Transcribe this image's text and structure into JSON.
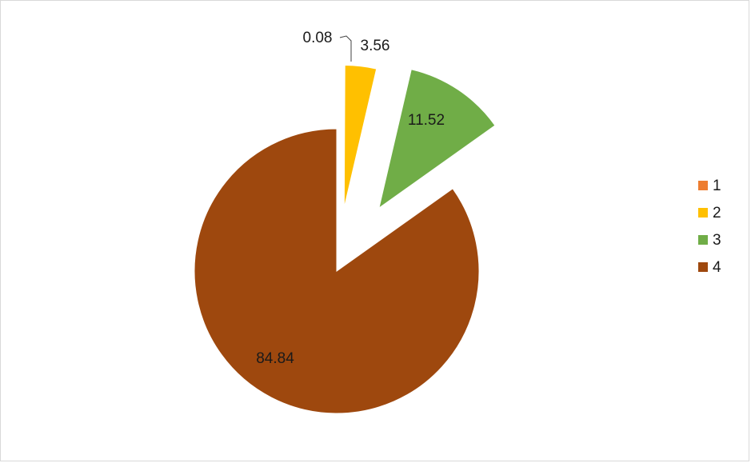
{
  "chart_data": {
    "type": "pie",
    "title": "",
    "legend_placement": "right",
    "exploded": true,
    "slices": [
      {
        "name": "1",
        "value": 0.08,
        "label": "0.08",
        "color": "#ED7D31"
      },
      {
        "name": "2",
        "value": 3.56,
        "label": "3.56",
        "color": "#FFC000"
      },
      {
        "name": "3",
        "value": 11.52,
        "label": "11.52",
        "color": "#70AD47"
      },
      {
        "name": "4",
        "value": 84.84,
        "label": "84.84",
        "color": "#9E480E"
      }
    ]
  }
}
